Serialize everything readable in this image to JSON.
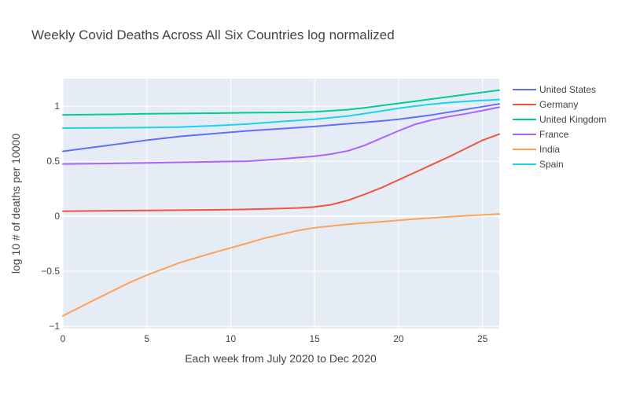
{
  "chart_data": {
    "type": "line",
    "title": "Weekly Covid Deaths Across All Six Countries log normalized",
    "xlabel": "Each week from July 2020 to Dec 2020",
    "ylabel": "log 10 # of deaths per 10000",
    "xlim": [
      0,
      26
    ],
    "ylim": [
      -1.02,
      1.25
    ],
    "xticks": [
      0,
      5,
      10,
      15,
      20,
      25
    ],
    "yticks": [
      -1,
      -0.5,
      0,
      0.5,
      1
    ],
    "yticklabels": [
      "−1",
      "−0.5",
      "0",
      "0.5",
      "1"
    ],
    "grid": true,
    "legend_position": "right",
    "plot_bg": "#e5ecf6",
    "series": [
      {
        "name": "United States",
        "color": "#636efa",
        "x": [
          0,
          2,
          4,
          5,
          7,
          9,
          11,
          13,
          15,
          17,
          19,
          20,
          21,
          22,
          23,
          24,
          25,
          26
        ],
        "y": [
          0.59,
          0.63,
          0.67,
          0.69,
          0.725,
          0.75,
          0.775,
          0.795,
          0.815,
          0.84,
          0.865,
          0.88,
          0.9,
          0.92,
          0.945,
          0.97,
          0.995,
          1.02
        ]
      },
      {
        "name": "Germany",
        "color": "#ef553b",
        "x": [
          0,
          3,
          5,
          7,
          9,
          11,
          13,
          14,
          15,
          16,
          17,
          18,
          19,
          20,
          21,
          22,
          23,
          24,
          25,
          26
        ],
        "y": [
          0.045,
          0.05,
          0.052,
          0.055,
          0.058,
          0.062,
          0.07,
          0.075,
          0.085,
          0.105,
          0.145,
          0.2,
          0.26,
          0.33,
          0.4,
          0.47,
          0.54,
          0.615,
          0.69,
          0.745
        ]
      },
      {
        "name": "United Kingdom",
        "color": "#00cc96",
        "x": [
          0,
          3,
          5,
          7,
          9,
          11,
          13,
          14,
          15,
          16,
          17,
          18,
          19,
          20,
          21,
          22,
          23,
          24,
          25,
          26
        ],
        "y": [
          0.92,
          0.925,
          0.93,
          0.933,
          0.936,
          0.94,
          0.942,
          0.944,
          0.948,
          0.958,
          0.968,
          0.985,
          1.005,
          1.025,
          1.045,
          1.065,
          1.085,
          1.105,
          1.125,
          1.145
        ]
      },
      {
        "name": "France",
        "color": "#ab63fa",
        "x": [
          0,
          3,
          5,
          7,
          9,
          11,
          13,
          15,
          16,
          17,
          18,
          19,
          20,
          21,
          22,
          23,
          24,
          25,
          26
        ],
        "y": [
          0.475,
          0.48,
          0.485,
          0.49,
          0.495,
          0.5,
          0.52,
          0.545,
          0.565,
          0.595,
          0.645,
          0.71,
          0.775,
          0.835,
          0.875,
          0.905,
          0.93,
          0.96,
          0.99
        ]
      },
      {
        "name": "India",
        "color": "#ffa15a",
        "x": [
          0,
          2,
          4,
          5,
          7,
          9,
          11,
          12,
          13,
          14,
          15,
          17,
          19,
          21,
          23,
          25,
          26
        ],
        "y": [
          -0.905,
          -0.75,
          -0.6,
          -0.535,
          -0.42,
          -0.33,
          -0.245,
          -0.2,
          -0.165,
          -0.13,
          -0.105,
          -0.072,
          -0.05,
          -0.025,
          -0.005,
          0.012,
          0.02
        ]
      },
      {
        "name": "Spain",
        "color": "#19d3f3",
        "x": [
          0,
          3,
          5,
          7,
          9,
          11,
          13,
          15,
          17,
          19,
          20,
          21,
          22,
          23,
          24,
          25,
          26
        ],
        "y": [
          0.8,
          0.803,
          0.806,
          0.81,
          0.822,
          0.838,
          0.86,
          0.88,
          0.91,
          0.955,
          0.98,
          1.0,
          1.018,
          1.032,
          1.043,
          1.052,
          1.06
        ]
      }
    ]
  }
}
